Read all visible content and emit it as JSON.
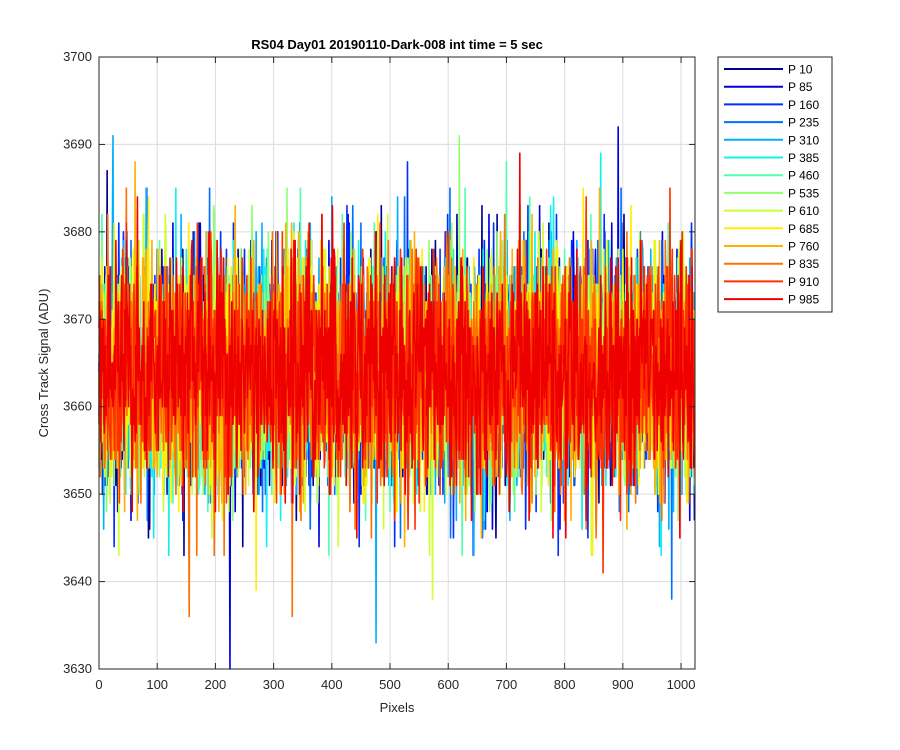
{
  "chart_data": {
    "type": "line",
    "title": "RS04 Day01 20190110-Dark-008 int time = 5 sec",
    "xlabel": "Pixels",
    "ylabel": "Cross Track Signal (ADU)",
    "xlim": [
      0,
      1024
    ],
    "ylim": [
      3630,
      3700
    ],
    "xticks": [
      0,
      100,
      200,
      300,
      400,
      500,
      600,
      700,
      800,
      900,
      1000
    ],
    "yticks": [
      3630,
      3640,
      3650,
      3660,
      3670,
      3680,
      3690,
      3700
    ],
    "grid": true,
    "legend_position": "outside-top-right",
    "n_points": 1024,
    "noise_mean": 3664,
    "noise_std": 6.5,
    "series": [
      {
        "name": "P 10",
        "color": "#00008F",
        "extremes": [
          {
            "x": 14,
            "y": 3687
          }
        ]
      },
      {
        "name": "P 85",
        "color": "#0000DF",
        "extremes": [
          {
            "x": 225,
            "y": 3630
          },
          {
            "x": 892,
            "y": 3692
          }
        ]
      },
      {
        "name": "P 160",
        "color": "#0030FF",
        "extremes": [
          {
            "x": 530,
            "y": 3688
          }
        ]
      },
      {
        "name": "P 235",
        "color": "#0070FF",
        "extremes": [
          {
            "x": 984,
            "y": 3638
          }
        ]
      },
      {
        "name": "P 310",
        "color": "#00B0FF",
        "extremes": [
          {
            "x": 24,
            "y": 3691
          },
          {
            "x": 476,
            "y": 3633
          }
        ]
      },
      {
        "name": "P 385",
        "color": "#10F0EF",
        "extremes": [
          {
            "x": 862,
            "y": 3689
          }
        ]
      },
      {
        "name": "P 460",
        "color": "#50FFAF",
        "extremes": [
          {
            "x": 700,
            "y": 3688
          }
        ]
      },
      {
        "name": "P 535",
        "color": "#90FF6F",
        "extremes": [
          {
            "x": 619,
            "y": 3691
          }
        ]
      },
      {
        "name": "P 610",
        "color": "#CFFF30",
        "extremes": [
          {
            "x": 573,
            "y": 3638
          }
        ]
      },
      {
        "name": "P 685",
        "color": "#FFEF00",
        "extremes": [
          {
            "x": 270,
            "y": 3639
          }
        ]
      },
      {
        "name": "P 760",
        "color": "#FFB000",
        "extremes": [
          {
            "x": 62,
            "y": 3688
          }
        ]
      },
      {
        "name": "P 835",
        "color": "#FF7000",
        "extremes": [
          {
            "x": 155,
            "y": 3636
          },
          {
            "x": 332,
            "y": 3636
          }
        ]
      },
      {
        "name": "P 910",
        "color": "#FF3000",
        "extremes": [
          {
            "x": 866,
            "y": 3641
          }
        ]
      },
      {
        "name": "P 985",
        "color": "#EF0000",
        "extremes": [
          {
            "x": 723,
            "y": 3689
          }
        ]
      }
    ]
  }
}
